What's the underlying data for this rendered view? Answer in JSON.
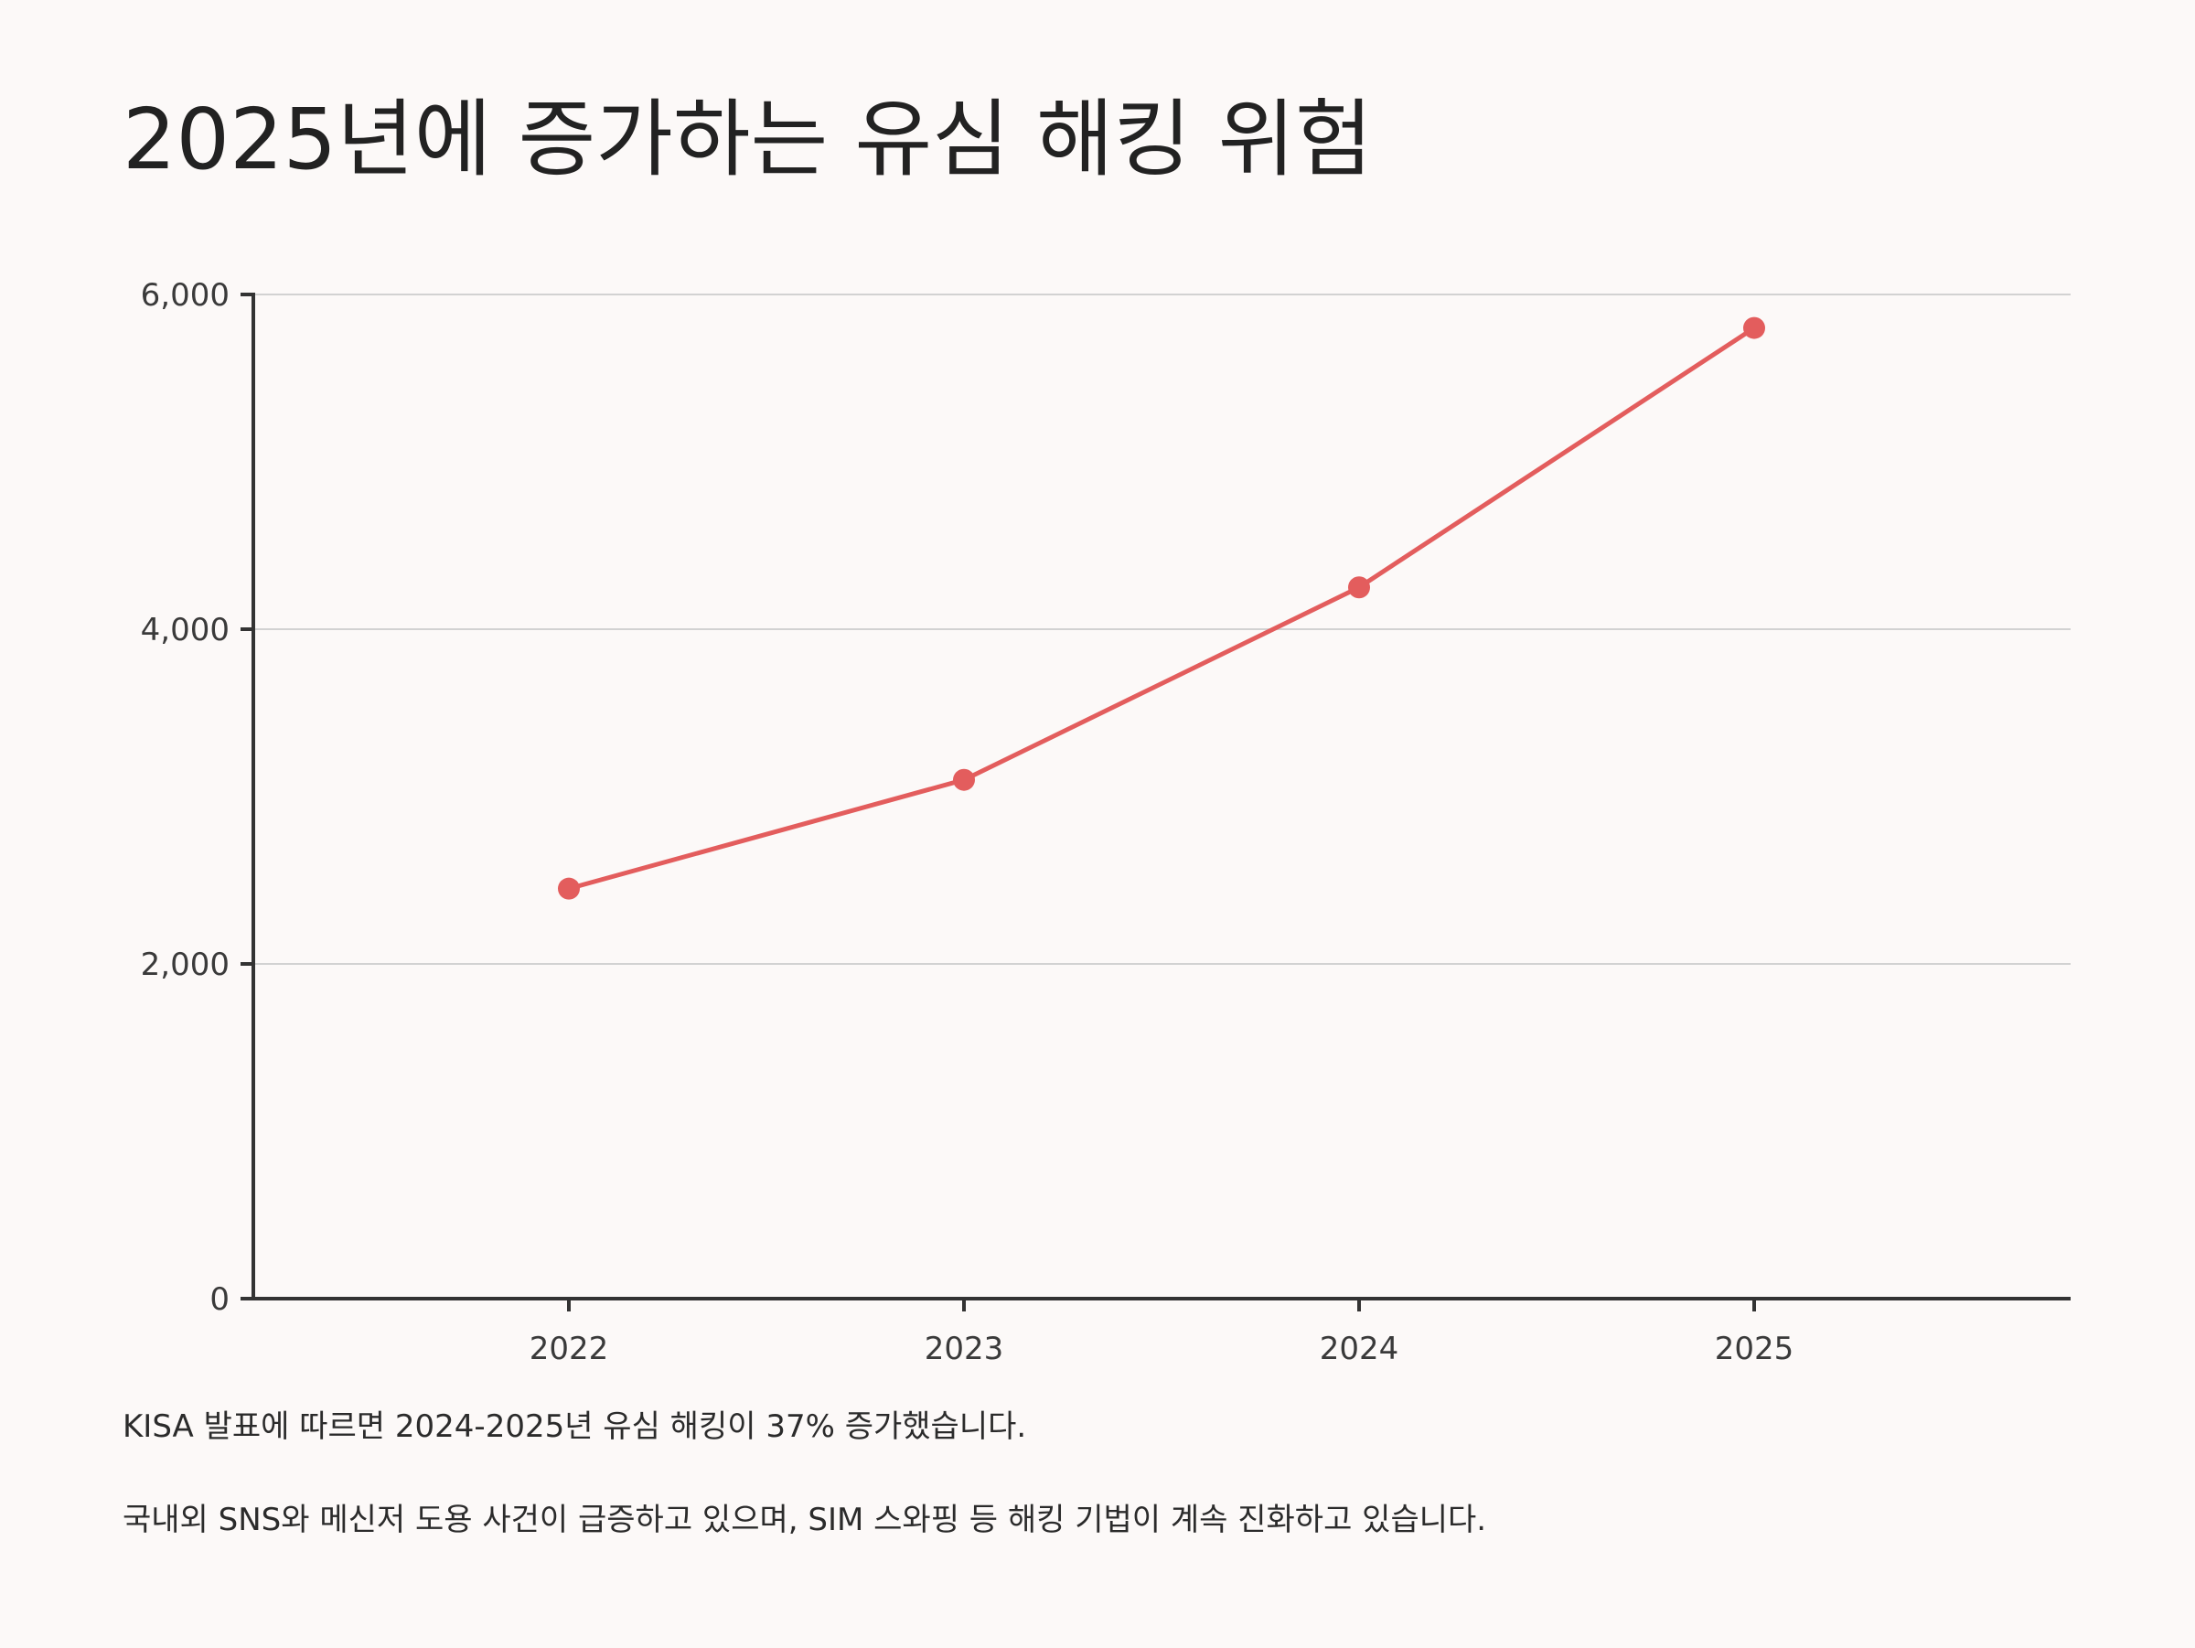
{
  "title": "2025년에 증가하는 유심 해킹 위험",
  "chart_data": {
    "type": "line",
    "title": "2025년에 증가하는 유심 해킹 위험",
    "xlabel": "",
    "ylabel": "",
    "x": [
      "2022",
      "2023",
      "2024",
      "2025"
    ],
    "series": [
      {
        "values": [
          2450,
          3100,
          4250,
          5800
        ]
      }
    ],
    "ylim": [
      0,
      6000
    ],
    "y_ticks": [
      0,
      2000,
      4000,
      6000
    ],
    "y_tick_labels": [
      "0",
      "2,000",
      "4,000",
      "6,000"
    ],
    "grid": "horizontal",
    "line_color": "#e35d5d",
    "axis_color": "#333333",
    "grid_color": "#d2d2d2"
  },
  "captions": [
    "KISA 발표에 따르면 2024-2025년 유심 해킹이 37% 증가했습니다.",
    "국내외 SNS와 메신저 도용 사건이 급증하고 있으며, SIM 스와핑 등 해킹 기법이 계속 진화하고 있습니다."
  ]
}
